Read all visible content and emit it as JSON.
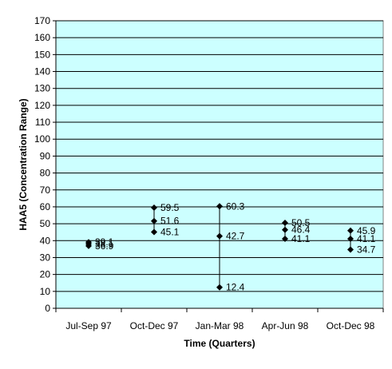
{
  "chart_data": {
    "type": "scatter",
    "subtype": "high-low-range with markers",
    "title": "",
    "xlabel": "Time (Quarters)",
    "ylabel": "HAA5 (Concentration Range)",
    "ylim": [
      0,
      170
    ],
    "ytick_step": 10,
    "grid": "horizontal",
    "plot_background": "#CCFFFF",
    "marker_color": "#000000",
    "categories": [
      "Jul-Sep 97",
      "Oct-Dec 97",
      "Jan-Mar 98",
      "Apr-Jun 98",
      "Oct-Dec 98"
    ],
    "points": [
      {
        "category": "Jul-Sep 97",
        "values": [
          39.1,
          38.1,
          36.9
        ],
        "labels": [
          "39.1",
          "38.1",
          "36.9"
        ]
      },
      {
        "category": "Oct-Dec 97",
        "values": [
          59.5,
          51.6,
          45.1
        ],
        "labels": [
          "59.5",
          "51.6",
          "45.1"
        ]
      },
      {
        "category": "Jan-Mar 98",
        "values": [
          60.3,
          42.7,
          12.4
        ],
        "labels": [
          "60.3",
          "42.7",
          "12.4"
        ]
      },
      {
        "category": "Apr-Jun 98",
        "values": [
          50.5,
          46.4,
          41.1
        ],
        "labels": [
          "50.5",
          "46.4",
          "41.1"
        ]
      },
      {
        "category": "Oct-Dec 98",
        "values": [
          45.9,
          41.1,
          34.7
        ],
        "labels": [
          "45.9",
          "41.1",
          "34.7"
        ]
      }
    ]
  }
}
